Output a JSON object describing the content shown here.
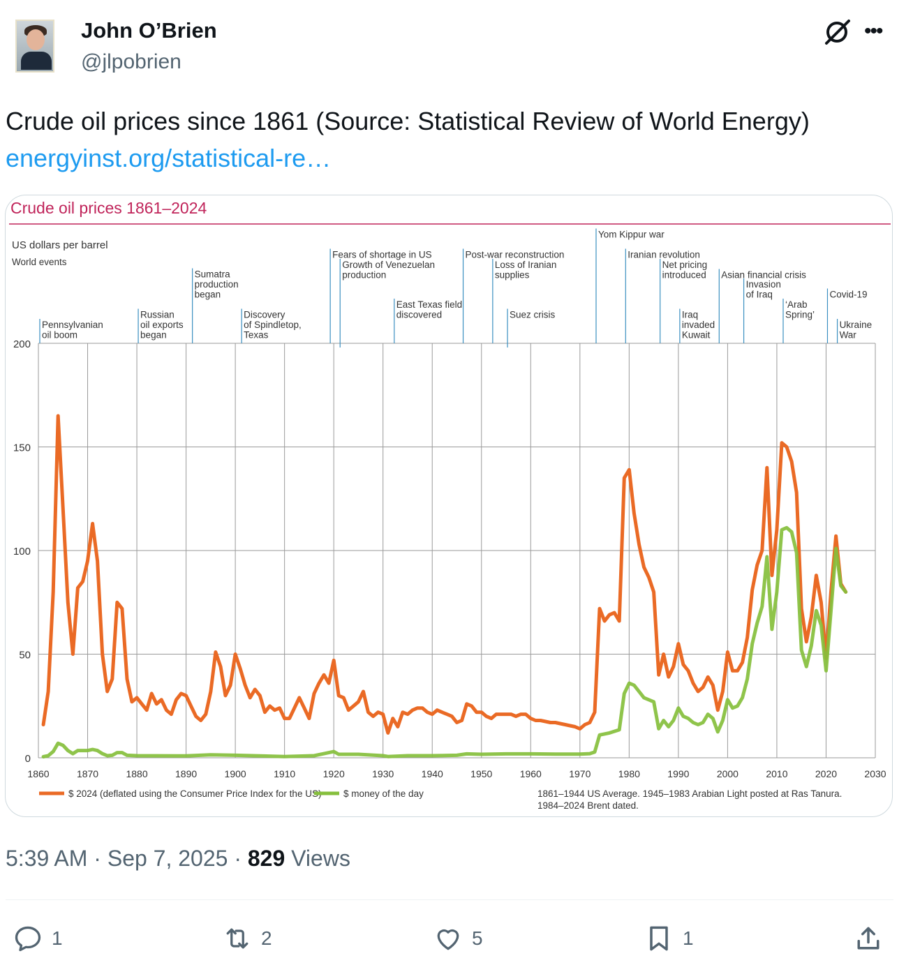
{
  "user": {
    "name": "John O’Brien",
    "handle": "@jlpobrien"
  },
  "tweet": {
    "text": "Crude oil prices since 1861 (Source: Statistical Review of World Energy)",
    "link": "energyinst.org/statistical-re…"
  },
  "meta": {
    "time": "5:39 AM",
    "sep1": "·",
    "date": "Sep 7, 2025",
    "sep2": "·",
    "views": "829",
    "views_label": "Views"
  },
  "actions": {
    "replies": "1",
    "reposts": "2",
    "likes": "5",
    "bookmarks": "1"
  },
  "icons": [
    "grok-icon",
    "more-icon",
    "reply-icon",
    "repost-icon",
    "like-icon",
    "bookmark-icon",
    "share-icon"
  ],
  "colors": {
    "accent": "#1d9bf0",
    "title": "#c0245a",
    "real": "#ea6a25",
    "nominal": "#86bf3c",
    "event": "#3a8fc0"
  },
  "chart_data": {
    "type": "line",
    "title": "Crude oil prices 1861–2024",
    "ylabel": "US dollars per barrel",
    "events_label": "World events",
    "xlim": [
      1860,
      2030
    ],
    "ylim": [
      0,
      200
    ],
    "x_ticks": [
      1860,
      1870,
      1880,
      1890,
      1900,
      1910,
      1920,
      1930,
      1940,
      1950,
      1960,
      1970,
      1980,
      1990,
      2000,
      2010,
      2020,
      2030
    ],
    "y_ticks": [
      0,
      50,
      100,
      150,
      200
    ],
    "grid": true,
    "legend_position": "bottom",
    "series": [
      {
        "name": "$ 2024 (deflated using the Consumer Price Index for the US)",
        "color": "#ea6a25",
        "points": [
          [
            1861,
            16
          ],
          [
            1862,
            32
          ],
          [
            1863,
            80
          ],
          [
            1864,
            165
          ],
          [
            1865,
            120
          ],
          [
            1866,
            75
          ],
          [
            1867,
            50
          ],
          [
            1868,
            82
          ],
          [
            1869,
            85
          ],
          [
            1870,
            95
          ],
          [
            1871,
            113
          ],
          [
            1872,
            95
          ],
          [
            1873,
            50
          ],
          [
            1874,
            32
          ],
          [
            1875,
            38
          ],
          [
            1876,
            75
          ],
          [
            1877,
            72
          ],
          [
            1878,
            38
          ],
          [
            1879,
            27
          ],
          [
            1880,
            29
          ],
          [
            1881,
            26
          ],
          [
            1882,
            23
          ],
          [
            1883,
            31
          ],
          [
            1884,
            26
          ],
          [
            1885,
            28
          ],
          [
            1886,
            23
          ],
          [
            1887,
            21
          ],
          [
            1888,
            28
          ],
          [
            1889,
            31
          ],
          [
            1890,
            30
          ],
          [
            1891,
            25
          ],
          [
            1892,
            20
          ],
          [
            1893,
            18
          ],
          [
            1894,
            21
          ],
          [
            1895,
            32
          ],
          [
            1896,
            51
          ],
          [
            1897,
            44
          ],
          [
            1898,
            30
          ],
          [
            1899,
            35
          ],
          [
            1900,
            50
          ],
          [
            1901,
            43
          ],
          [
            1902,
            35
          ],
          [
            1903,
            29
          ],
          [
            1904,
            33
          ],
          [
            1905,
            30
          ],
          [
            1906,
            22
          ],
          [
            1907,
            25
          ],
          [
            1908,
            23
          ],
          [
            1909,
            24
          ],
          [
            1910,
            19
          ],
          [
            1911,
            19
          ],
          [
            1912,
            24
          ],
          [
            1913,
            29
          ],
          [
            1914,
            24
          ],
          [
            1915,
            19
          ],
          [
            1916,
            31
          ],
          [
            1917,
            36
          ],
          [
            1918,
            40
          ],
          [
            1919,
            36
          ],
          [
            1920,
            47
          ],
          [
            1921,
            30
          ],
          [
            1922,
            29
          ],
          [
            1923,
            23
          ],
          [
            1924,
            25
          ],
          [
            1925,
            27
          ],
          [
            1926,
            32
          ],
          [
            1927,
            22
          ],
          [
            1928,
            20
          ],
          [
            1929,
            22
          ],
          [
            1930,
            21
          ],
          [
            1931,
            12
          ],
          [
            1932,
            19
          ],
          [
            1933,
            15
          ],
          [
            1934,
            22
          ],
          [
            1935,
            21
          ],
          [
            1936,
            23
          ],
          [
            1937,
            24
          ],
          [
            1938,
            24
          ],
          [
            1939,
            22
          ],
          [
            1940,
            21
          ],
          [
            1941,
            23
          ],
          [
            1942,
            22
          ],
          [
            1943,
            21
          ],
          [
            1944,
            20
          ],
          [
            1945,
            17
          ],
          [
            1946,
            18
          ],
          [
            1947,
            26
          ],
          [
            1948,
            25
          ],
          [
            1949,
            22
          ],
          [
            1950,
            22
          ],
          [
            1951,
            20
          ],
          [
            1952,
            19
          ],
          [
            1953,
            21
          ],
          [
            1954,
            21
          ],
          [
            1955,
            21
          ],
          [
            1956,
            21
          ],
          [
            1957,
            20
          ],
          [
            1958,
            21
          ],
          [
            1959,
            21
          ],
          [
            1960,
            19
          ],
          [
            1961,
            18
          ],
          [
            1962,
            18
          ],
          [
            1963,
            17.5
          ],
          [
            1964,
            17
          ],
          [
            1965,
            17
          ],
          [
            1966,
            16.5
          ],
          [
            1967,
            16
          ],
          [
            1968,
            15.5
          ],
          [
            1969,
            15
          ],
          [
            1970,
            14
          ],
          [
            1971,
            16
          ],
          [
            1972,
            17
          ],
          [
            1973,
            22
          ],
          [
            1974,
            72
          ],
          [
            1975,
            66
          ],
          [
            1976,
            69
          ],
          [
            1977,
            70
          ],
          [
            1978,
            66
          ],
          [
            1979,
            135
          ],
          [
            1980,
            139
          ],
          [
            1981,
            118
          ],
          [
            1982,
            103
          ],
          [
            1983,
            92
          ],
          [
            1984,
            87
          ],
          [
            1985,
            80
          ],
          [
            1986,
            40
          ],
          [
            1987,
            50
          ],
          [
            1988,
            39
          ],
          [
            1989,
            44
          ],
          [
            1990,
            55
          ],
          [
            1991,
            45
          ],
          [
            1992,
            42
          ],
          [
            1993,
            36
          ],
          [
            1994,
            32
          ],
          [
            1995,
            34
          ],
          [
            1996,
            39
          ],
          [
            1997,
            35
          ],
          [
            1998,
            23
          ],
          [
            1999,
            32
          ],
          [
            2000,
            51
          ],
          [
            2001,
            42
          ],
          [
            2002,
            42
          ],
          [
            2003,
            46
          ],
          [
            2004,
            58
          ],
          [
            2005,
            81
          ],
          [
            2006,
            93
          ],
          [
            2007,
            100
          ],
          [
            2008,
            140
          ],
          [
            2009,
            88
          ],
          [
            2010,
            110
          ],
          [
            2011,
            152
          ],
          [
            2012,
            150
          ],
          [
            2013,
            143
          ],
          [
            2014,
            128
          ],
          [
            2015,
            72
          ],
          [
            2016,
            56
          ],
          [
            2017,
            68
          ],
          [
            2018,
            88
          ],
          [
            2019,
            75
          ],
          [
            2020,
            48
          ],
          [
            2021,
            80
          ],
          [
            2022,
            107
          ],
          [
            2023,
            84
          ],
          [
            2024,
            80
          ]
        ]
      },
      {
        "name": "$ money of the day",
        "color": "#86bf3c",
        "points": [
          [
            1861,
            0.5
          ],
          [
            1862,
            1
          ],
          [
            1863,
            3
          ],
          [
            1864,
            7
          ],
          [
            1865,
            6
          ],
          [
            1866,
            3.5
          ],
          [
            1867,
            2
          ],
          [
            1868,
            3.5
          ],
          [
            1869,
            3.5
          ],
          [
            1870,
            3.5
          ],
          [
            1871,
            4
          ],
          [
            1872,
            3.5
          ],
          [
            1873,
            2
          ],
          [
            1874,
            1
          ],
          [
            1875,
            1.2
          ],
          [
            1876,
            2.5
          ],
          [
            1877,
            2.5
          ],
          [
            1878,
            1.2
          ],
          [
            1880,
            1
          ],
          [
            1890,
            0.9
          ],
          [
            1895,
            1.4
          ],
          [
            1900,
            1.2
          ],
          [
            1910,
            0.6
          ],
          [
            1916,
            1
          ],
          [
            1918,
            2
          ],
          [
            1920,
            3
          ],
          [
            1921,
            1.7
          ],
          [
            1925,
            1.7
          ],
          [
            1930,
            1
          ],
          [
            1931,
            0.6
          ],
          [
            1935,
            1
          ],
          [
            1940,
            1
          ],
          [
            1945,
            1.2
          ],
          [
            1947,
            1.9
          ],
          [
            1950,
            1.7
          ],
          [
            1955,
            1.9
          ],
          [
            1960,
            1.9
          ],
          [
            1965,
            1.8
          ],
          [
            1970,
            1.8
          ],
          [
            1972,
            2
          ],
          [
            1973,
            2.8
          ],
          [
            1974,
            11
          ],
          [
            1976,
            12
          ],
          [
            1978,
            13.5
          ],
          [
            1979,
            31
          ],
          [
            1980,
            36
          ],
          [
            1981,
            35
          ],
          [
            1982,
            32
          ],
          [
            1983,
            29
          ],
          [
            1985,
            27
          ],
          [
            1986,
            14
          ],
          [
            1987,
            18
          ],
          [
            1988,
            15
          ],
          [
            1989,
            18
          ],
          [
            1990,
            24
          ],
          [
            1991,
            20
          ],
          [
            1992,
            19
          ],
          [
            1993,
            17
          ],
          [
            1994,
            16
          ],
          [
            1995,
            17
          ],
          [
            1996,
            21
          ],
          [
            1997,
            19
          ],
          [
            1998,
            12.5
          ],
          [
            1999,
            18
          ],
          [
            2000,
            28
          ],
          [
            2001,
            24
          ],
          [
            2002,
            25
          ],
          [
            2003,
            29
          ],
          [
            2004,
            38
          ],
          [
            2005,
            55
          ],
          [
            2006,
            65
          ],
          [
            2007,
            73
          ],
          [
            2008,
            97
          ],
          [
            2009,
            62
          ],
          [
            2010,
            80
          ],
          [
            2011,
            110
          ],
          [
            2012,
            111
          ],
          [
            2013,
            109
          ],
          [
            2014,
            99
          ],
          [
            2015,
            52
          ],
          [
            2016,
            44
          ],
          [
            2017,
            54
          ],
          [
            2018,
            71
          ],
          [
            2019,
            64
          ],
          [
            2020,
            42
          ],
          [
            2021,
            71
          ],
          [
            2022,
            101
          ],
          [
            2023,
            83
          ],
          [
            2024,
            80
          ]
        ]
      }
    ],
    "events": [
      {
        "year": 1860,
        "lines": [
          "Pennsylvanian",
          "oil boom"
        ]
      },
      {
        "year": 1880,
        "lines": [
          "Russian",
          "oil exports",
          "began"
        ]
      },
      {
        "year": 1891,
        "lines": [
          "Sumatra",
          "production",
          "began"
        ]
      },
      {
        "year": 1901,
        "lines": [
          "Discovery",
          "of Spindletop,",
          "Texas"
        ]
      },
      {
        "year": 1919,
        "lines": [
          "Fears of shortage in US"
        ]
      },
      {
        "year": 1921,
        "lines": [
          "Growth of Venezuelan",
          "production"
        ]
      },
      {
        "year": 1932,
        "lines": [
          "East Texas field",
          "discovered"
        ]
      },
      {
        "year": 1946,
        "lines": [
          "Post-war reconstruction"
        ]
      },
      {
        "year": 1952,
        "lines": [
          "Loss of Iranian",
          "supplies"
        ]
      },
      {
        "year": 1955,
        "lines": [
          "Suez crisis"
        ]
      },
      {
        "year": 1973,
        "lines": [
          "Yom Kippur war"
        ]
      },
      {
        "year": 1979,
        "lines": [
          "Iranian revolution"
        ]
      },
      {
        "year": 1986,
        "lines": [
          "Net pricing",
          "introduced"
        ]
      },
      {
        "year": 1990,
        "lines": [
          "Iraq",
          "invaded",
          "Kuwait"
        ]
      },
      {
        "year": 1998,
        "lines": [
          "Asian financial crisis"
        ]
      },
      {
        "year": 2003,
        "lines": [
          "Invasion",
          "of Iraq"
        ]
      },
      {
        "year": 2011,
        "lines": [
          "‘Arab",
          "Spring’"
        ]
      },
      {
        "year": 2020,
        "lines": [
          "Covid-19"
        ]
      },
      {
        "year": 2022,
        "lines": [
          "Ukraine",
          "War"
        ]
      }
    ],
    "footnote": [
      "1861–1944 US Average. 1945–1983 Arabian Light posted at Ras Tanura.",
      "1984–2024 Brent dated."
    ]
  }
}
